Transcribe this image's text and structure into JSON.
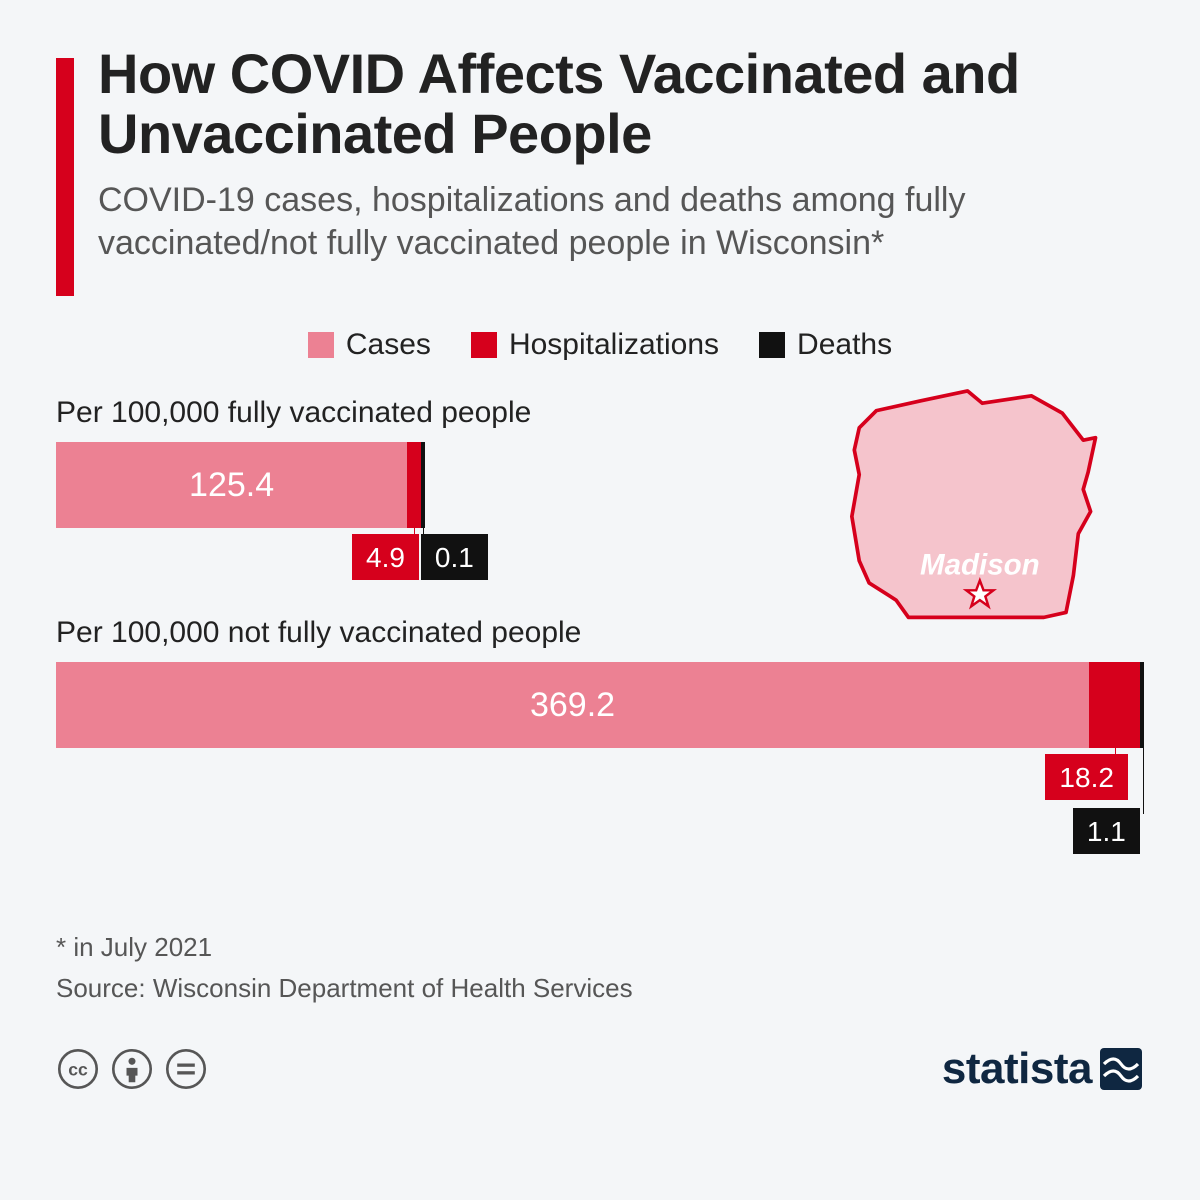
{
  "background_color": "#f4f6f8",
  "accent_bar_color": "#d6001c",
  "text_color": "#222222",
  "muted_text_color": "#565656",
  "title": "How COVID Affects Vaccinated and Unvaccinated People",
  "subtitle": "COVID-19 cases, hospitalizations and deaths among fully vaccinated/not fully vaccinated people in Wisconsin*",
  "legend": {
    "items": [
      {
        "label": "Cases",
        "color": "#ec8193"
      },
      {
        "label": "Hospitalizations",
        "color": "#d6001c"
      },
      {
        "label": "Deaths",
        "color": "#111111"
      }
    ]
  },
  "chart": {
    "type": "stacked-horizontal-bar",
    "full_width_value": 388.5,
    "groups": [
      {
        "label": "Per 100,000 fully vaccinated people",
        "segments": [
          {
            "key": "cases",
            "value": 125.4,
            "label": "125.4",
            "color": "#ec8193",
            "show_inline": true
          },
          {
            "key": "hosp",
            "value": 4.9,
            "label": "4.9",
            "color": "#d6001c",
            "show_inline": false
          },
          {
            "key": "deaths",
            "value": 0.1,
            "label": "0.1",
            "color": "#111111",
            "show_inline": false
          }
        ]
      },
      {
        "label": "Per 100,000 not fully vaccinated people",
        "segments": [
          {
            "key": "cases",
            "value": 369.2,
            "label": "369.2",
            "color": "#ec8193",
            "show_inline": true
          },
          {
            "key": "hosp",
            "value": 18.2,
            "label": "18.2",
            "color": "#d6001c",
            "show_inline": false
          },
          {
            "key": "deaths",
            "value": 1.1,
            "label": "1.1",
            "color": "#111111",
            "show_inline": false
          }
        ]
      }
    ]
  },
  "map": {
    "fill_color": "#f5c4cc",
    "stroke_color": "#d6001c",
    "city_label": "Madison"
  },
  "footnote": "* in July 2021",
  "source": "Source: Wisconsin Department of Health Services",
  "logo_text": "statista",
  "logo_color": "#0f2741"
}
